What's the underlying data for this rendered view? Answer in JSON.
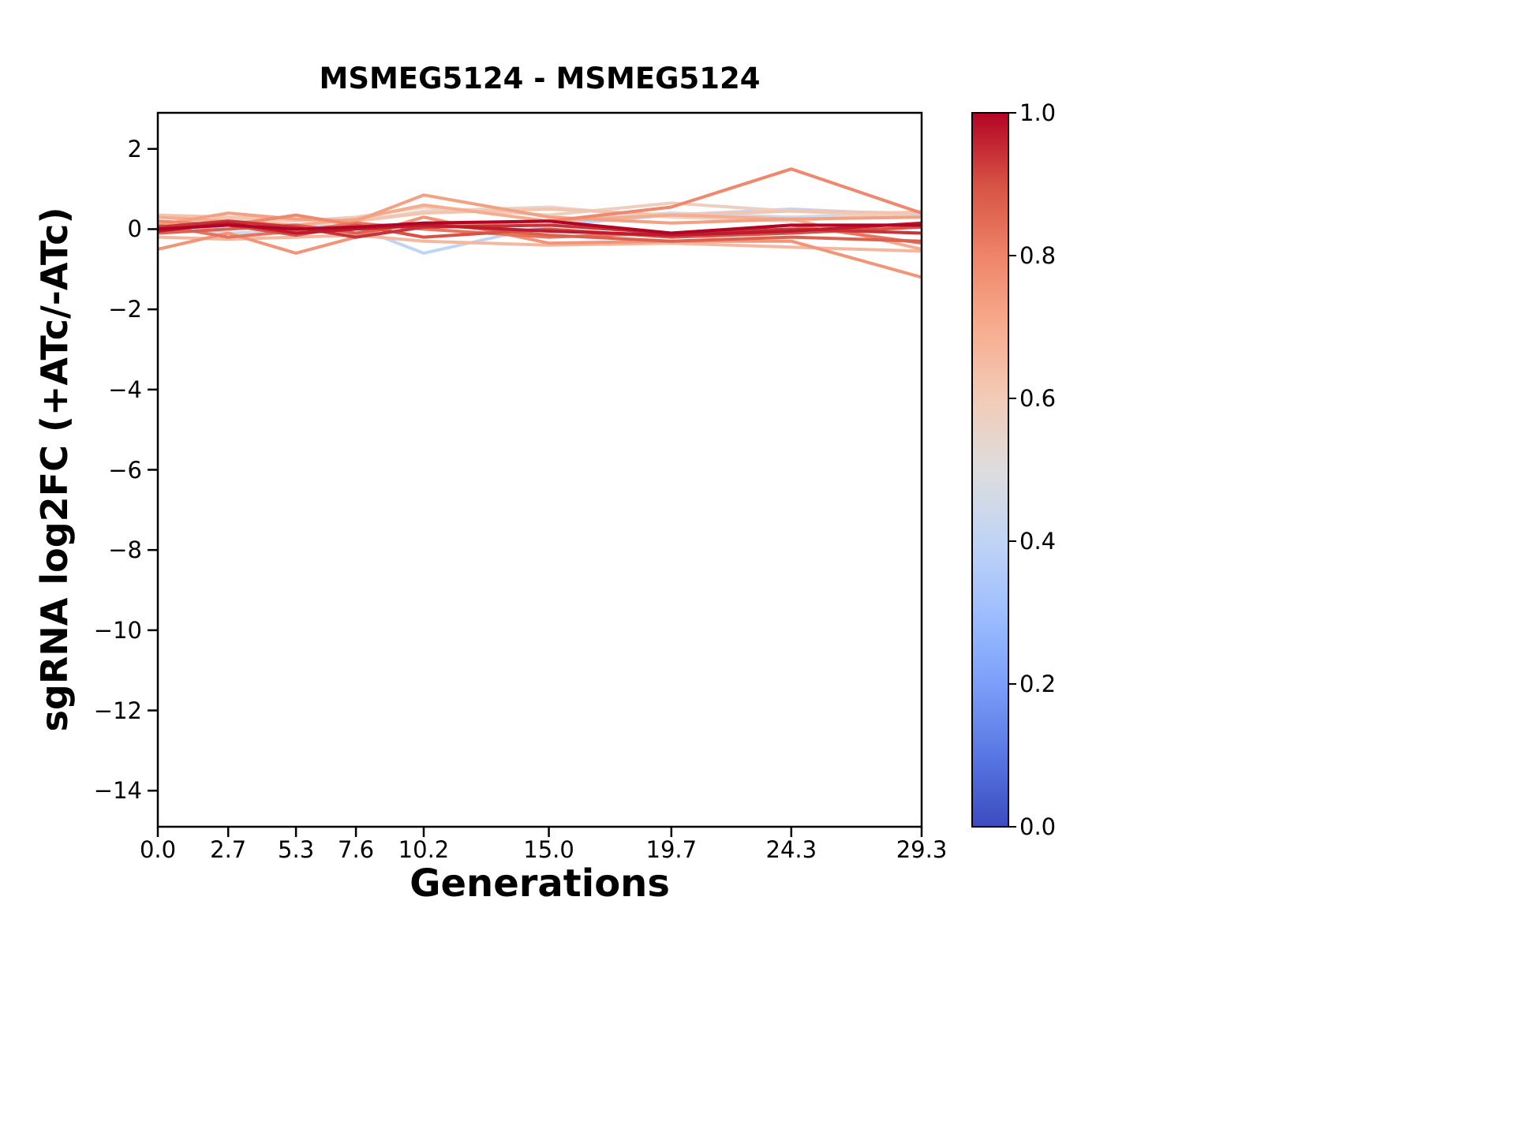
{
  "chart_data": {
    "type": "line",
    "title": "MSMEG5124 - MSMEG5124",
    "xlabel": "Generations",
    "ylabel": "sgRNA log2FC (+ATc/-ATc)",
    "xlim": [
      0,
      29.3
    ],
    "ylim": [
      -14.9,
      2.9
    ],
    "grid": false,
    "x": [
      0.0,
      2.7,
      5.3,
      7.6,
      10.2,
      15.0,
      19.7,
      24.3,
      29.3
    ],
    "x_tick_labels": [
      "0.0",
      "2.7",
      "5.3",
      "7.6",
      "10.2",
      "15.0",
      "19.7",
      "24.3",
      "29.3"
    ],
    "y_ticks": [
      2,
      0,
      -2,
      -4,
      -6,
      -8,
      -10,
      -12,
      -14
    ],
    "y_tick_labels": [
      "2",
      "0",
      "−2",
      "−4",
      "−6",
      "−8",
      "−10",
      "−12",
      "−14"
    ],
    "series": [
      {
        "color_value": 0.4,
        "values": [
          0.05,
          0.0,
          0.1,
          0.05,
          -0.6,
          0.1,
          0.35,
          0.5,
          0.35
        ]
      },
      {
        "color_value": 0.45,
        "values": [
          0.0,
          -0.1,
          -0.05,
          0.0,
          0.15,
          0.2,
          0.4,
          0.3,
          0.4
        ]
      },
      {
        "color_value": 0.55,
        "values": [
          0.3,
          0.15,
          0.1,
          0.2,
          0.45,
          0.55,
          0.3,
          0.2,
          0.45
        ]
      },
      {
        "color_value": 0.58,
        "values": [
          0.15,
          0.25,
          0.2,
          0.3,
          0.55,
          0.35,
          0.65,
          0.45,
          0.3
        ]
      },
      {
        "color_value": 0.62,
        "values": [
          0.35,
          0.3,
          0.25,
          0.2,
          0.4,
          0.5,
          0.35,
          0.45,
          0.4
        ]
      },
      {
        "color_value": 0.66,
        "values": [
          -0.2,
          -0.25,
          -0.2,
          -0.15,
          -0.3,
          -0.4,
          -0.35,
          -0.45,
          -0.55
        ]
      },
      {
        "color_value": 0.7,
        "values": [
          0.3,
          0.2,
          0.1,
          0.25,
          0.6,
          0.2,
          0.35,
          0.25,
          -0.5
        ]
      },
      {
        "color_value": 0.73,
        "values": [
          0.1,
          0.4,
          0.25,
          0.2,
          0.85,
          0.3,
          0.15,
          0.25,
          0.3
        ]
      },
      {
        "color_value": 0.76,
        "values": [
          -0.5,
          -0.1,
          -0.6,
          -0.2,
          0.3,
          -0.35,
          -0.3,
          -0.3,
          -1.2
        ]
      },
      {
        "color_value": 0.79,
        "values": [
          0.2,
          0.1,
          0.35,
          0.1,
          0.1,
          0.2,
          0.55,
          1.5,
          0.4
        ]
      },
      {
        "color_value": 0.83,
        "values": [
          0.1,
          -0.2,
          -0.05,
          0.15,
          0.0,
          -0.2,
          -0.1,
          0.1,
          -0.35
        ]
      },
      {
        "color_value": 0.87,
        "values": [
          -0.1,
          0.0,
          0.1,
          -0.1,
          0.15,
          -0.15,
          -0.3,
          -0.2,
          -0.3
        ]
      },
      {
        "color_value": 0.9,
        "values": [
          0.0,
          0.1,
          -0.15,
          0.1,
          -0.2,
          0.0,
          -0.2,
          -0.1,
          0.05
        ]
      },
      {
        "color_value": 0.94,
        "values": [
          0.05,
          0.2,
          0.05,
          -0.2,
          0.05,
          0.1,
          -0.1,
          0.0,
          -0.1
        ]
      },
      {
        "color_value": 0.97,
        "values": [
          -0.05,
          0.15,
          -0.1,
          0.0,
          0.1,
          -0.05,
          -0.15,
          -0.05,
          0.15
        ]
      },
      {
        "color_value": 1.0,
        "values": [
          0.0,
          0.1,
          0.0,
          0.05,
          0.15,
          0.2,
          -0.1,
          0.1,
          0.1
        ]
      }
    ],
    "colorbar": {
      "colormap": "coolwarm",
      "ticks": [
        1.0,
        0.8,
        0.6,
        0.4,
        0.2,
        0.0
      ],
      "tick_labels": [
        "1.0",
        "0.8",
        "0.6",
        "0.4",
        "0.2",
        "0.0"
      ],
      "colormap_stops": [
        [
          0.0,
          "#3B4CC0"
        ],
        [
          0.1,
          "#5977E3"
        ],
        [
          0.2,
          "#7B9FF9"
        ],
        [
          0.3,
          "#9EBEFF"
        ],
        [
          0.4,
          "#C0D4F5"
        ],
        [
          0.5,
          "#DDDDDD"
        ],
        [
          0.6,
          "#F2CBB7"
        ],
        [
          0.7,
          "#F7AC8E"
        ],
        [
          0.8,
          "#EE8468"
        ],
        [
          0.9,
          "#D65244"
        ],
        [
          1.0,
          "#B40426"
        ]
      ]
    },
    "colors": {
      "axes": "#000000",
      "background": "#ffffff"
    }
  }
}
